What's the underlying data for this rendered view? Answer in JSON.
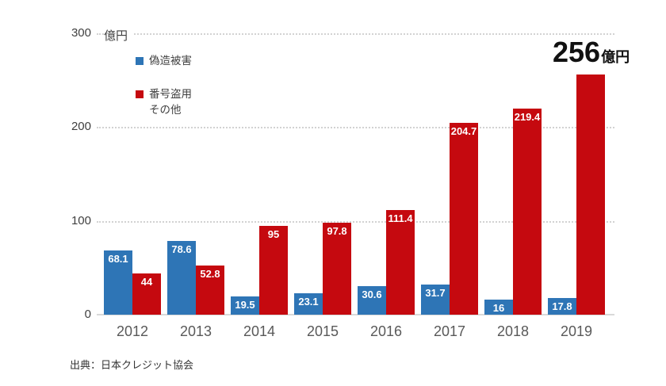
{
  "chart_data": {
    "type": "bar",
    "title": "",
    "unit": "億円",
    "categories": [
      "2012",
      "2013",
      "2014",
      "2015",
      "2016",
      "2017",
      "2018",
      "2019"
    ],
    "series": [
      {
        "name": "偽造被害",
        "color": "#2E75B6",
        "values": [
          68.1,
          78.6,
          19.5,
          23.1,
          30.6,
          31.7,
          16,
          17.8
        ]
      },
      {
        "name": "番号盗用・その他",
        "color": "#C5090F",
        "values": [
          44,
          52.8,
          95,
          97.8,
          111.4,
          204.7,
          219.4,
          256
        ]
      }
    ],
    "ylim": [
      0,
      300
    ],
    "yticks": [
      0,
      100,
      200,
      300
    ],
    "grid": "horizontal-dotted",
    "legend_position": "upper-left",
    "bar_label_color": "#ffffff",
    "annotation": {
      "for_category": "2019",
      "value": "256",
      "unit": "億円"
    }
  },
  "legend": {
    "items": [
      {
        "label": "偽造被害",
        "color": "#2E75B6"
      },
      {
        "label": "番号盗用",
        "label2": "その他",
        "color": "#C5090F"
      }
    ]
  },
  "source": "出典：日本クレジット協会"
}
